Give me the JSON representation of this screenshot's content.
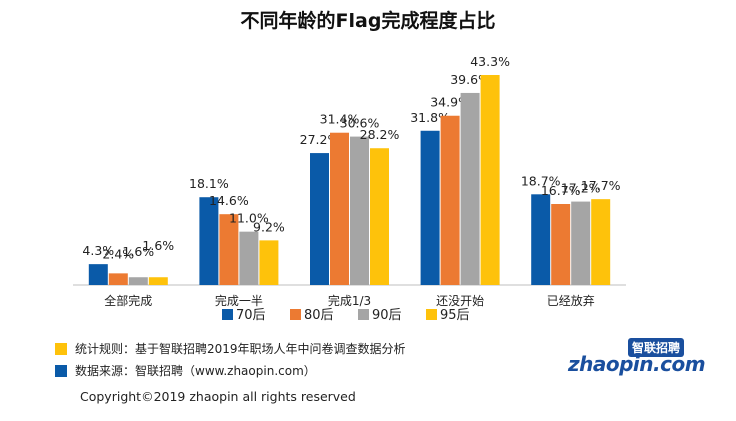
{
  "title": "不同年龄的Flag完成程度占比",
  "chart_data": {
    "type": "bar",
    "title": "不同年龄的Flag完成程度占比",
    "categories": [
      "全部完成",
      "完成一半",
      "完成1/3",
      "还没开始",
      "已经放弃"
    ],
    "series": [
      {
        "name": "70后",
        "color": "#0a5aa8",
        "values": [
          4.3,
          18.1,
          27.2,
          31.8,
          18.7
        ],
        "labels": [
          "4.3%",
          "18.1%",
          "27.2%",
          "31.8%",
          "18.7%"
        ]
      },
      {
        "name": "80后",
        "color": "#ec7a32",
        "values": [
          2.4,
          14.6,
          31.4,
          34.9,
          16.7
        ],
        "labels": [
          "2.4%",
          "14.6%",
          "31.4%",
          "34.9%",
          "16.7%"
        ]
      },
      {
        "name": "90后",
        "color": "#a5a5a5",
        "values": [
          1.6,
          11.0,
          30.6,
          39.6,
          17.2
        ],
        "labels": [
          "1.6%",
          "11.0%",
          "30.6%",
          "39.6%",
          "17.2%"
        ]
      },
      {
        "name": "95后",
        "color": "#fec20b",
        "values": [
          1.6,
          9.2,
          28.2,
          43.3,
          17.7
        ],
        "labels": [
          "1.6%",
          "9.2%",
          "28.2%",
          "43.3%",
          "17.7%"
        ]
      }
    ],
    "ylim": [
      0,
      50
    ],
    "grid": false,
    "legend": "bottom"
  },
  "footnotes": [
    {
      "text": "统计规则：基于智联招聘2019年职场人年中问卷调查数据分析",
      "color": "#fec20b"
    },
    {
      "text": "数据来源：智联招聘（www.zhaopin.com）",
      "color": "#0a5aa8"
    }
  ],
  "copyright": "Copyright©2019 zhaopin all rights reserved",
  "logo": {
    "cn": "智联招聘",
    "en": "zhaopin.com"
  }
}
